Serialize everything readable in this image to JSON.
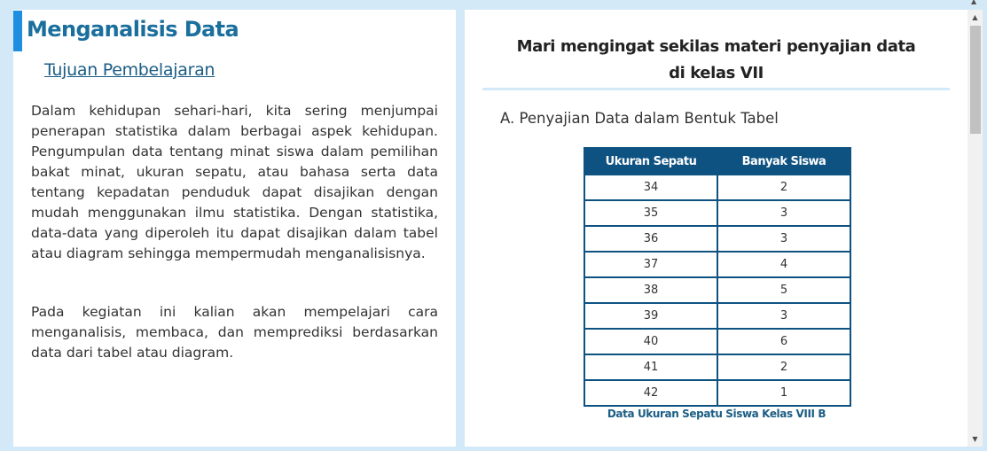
{
  "left": {
    "title": "Menganalisis Data",
    "subtitle": "Tujuan Pembelajaran",
    "paragraph1": "Dalam kehidupan sehari-hari, kita sering menjumpai penerapan statistika dalam berbagai aspek kehidupan. Pengumpulan data tentang minat siswa dalam pemilihan bakat minat, ukuran sepatu, atau bahasa serta data tentang kepadatan penduduk dapat disajikan dengan mudah menggunakan ilmu statistika. Dengan statistika, data-data yang diperoleh itu dapat disajikan dalam tabel atau diagram sehingga mempermudah menganalisisnya.",
    "paragraph2": "Pada kegiatan ini kalian akan mempelajari cara menganalisis, membaca, dan memprediksi berdasarkan data dari tabel atau diagram."
  },
  "right": {
    "title_line1": "Mari mengingat sekilas materi penyajian data",
    "title_line2": "di kelas VII",
    "section_heading": "A. Penyajian Data dalam Bentuk Tabel",
    "table": {
      "headers": [
        "Ukuran Sepatu",
        "Banyak Siswa"
      ],
      "rows": [
        [
          "34",
          "2"
        ],
        [
          "35",
          "3"
        ],
        [
          "36",
          "3"
        ],
        [
          "37",
          "4"
        ],
        [
          "38",
          "5"
        ],
        [
          "39",
          "3"
        ],
        [
          "40",
          "6"
        ],
        [
          "41",
          "2"
        ],
        [
          "42",
          "1"
        ]
      ],
      "caption": "Data Ukuran Sepatu Siswa Kelas VIII B"
    }
  },
  "icons": {
    "scroll_up": "scroll-up-arrow-icon",
    "scroll_down": "scroll-down-arrow-icon"
  },
  "colors": {
    "accent_bar": "#1e8fe0",
    "title": "#1b6f9d",
    "table_header": "#0e5282",
    "background": "#d3e9f7"
  }
}
